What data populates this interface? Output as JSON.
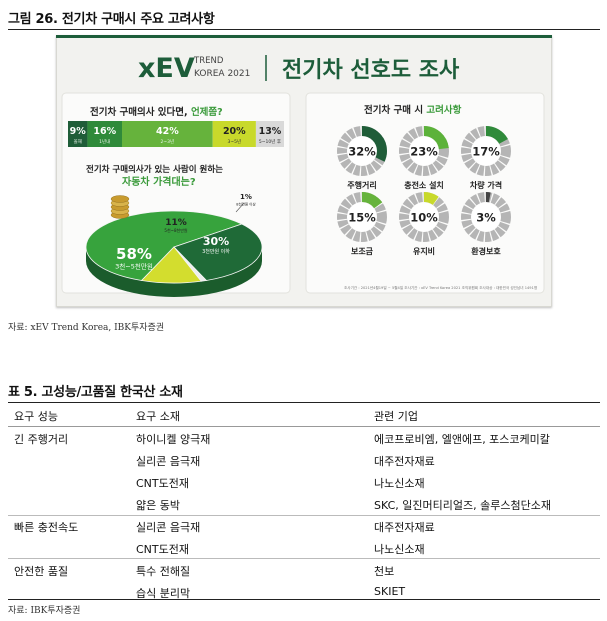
{
  "figure": {
    "title": "그림 26. 전기차 구매시 주요 고려사항",
    "source": "자료: xEV Trend Korea, IBK투자증권"
  },
  "poster": {
    "brand": "xEV",
    "brand_sub1": "TREND",
    "brand_sub2": "KOREA 2021",
    "headline": "전기차 선호도 조사",
    "bar_question_a": "전기차 구매의사 있다면, ",
    "bar_question_b": "언제쯤?",
    "bar_segments": [
      {
        "pct": "9%",
        "label": "올해",
        "share": 9,
        "color": "#1f5d38"
      },
      {
        "pct": "16%",
        "label": "1년내",
        "share": 16,
        "color": "#2f8a3a"
      },
      {
        "pct": "42%",
        "label": "2~3년",
        "share": 42,
        "color": "#66b33c"
      },
      {
        "pct": "20%",
        "label": "3~5년",
        "share": 20,
        "color": "#c8d92b"
      },
      {
        "pct": "13%",
        "label": "5~10년 후",
        "share": 13,
        "color": "#d9d9d9"
      }
    ],
    "pie_question_a": "전기차 구매의사가 있는 사람이 원하는",
    "pie_question_b": "자동차 가격대는?",
    "pie_slices": [
      {
        "pct": "58%",
        "label": "3천~5천만원",
        "value": 58,
        "color": "#37a33d"
      },
      {
        "pct": "30%",
        "label": "3천만원 이하",
        "value": 30,
        "color": "#1f6a37"
      },
      {
        "pct": "11%",
        "label": "5천~8천만원",
        "value": 11,
        "color": "#d3dd2e"
      },
      {
        "pct": "1%",
        "label": "8천만원 이상",
        "value": 1,
        "color": "#eeeeee"
      }
    ],
    "donut_title_a": "전기차 구매 시 ",
    "donut_title_b": "고려사항",
    "donuts": [
      {
        "pct": "32%",
        "label": "주행거리",
        "value": 32,
        "color": "#1f5d38"
      },
      {
        "pct": "23%",
        "label": "충전소 설치",
        "value": 23,
        "color": "#5cb23a"
      },
      {
        "pct": "17%",
        "label": "차량 가격",
        "value": 17,
        "color": "#2f8a3a"
      },
      {
        "pct": "15%",
        "label": "보조금",
        "value": 15,
        "color": "#66b33c"
      },
      {
        "pct": "10%",
        "label": "유지비",
        "value": 10,
        "color": "#c8d92b"
      },
      {
        "pct": "3%",
        "label": "환경보호",
        "value": 3,
        "color": "#444444"
      }
    ],
    "footnote": "조사기간 : 2021년4월19일 ~ 5월4일 조사기관 : xEV Trend Korea 2021 조직위원회 조사대상 : 대한민국 성인남녀 1491명"
  },
  "table": {
    "title": "표 5. 고성능/고품질 한국산 소재",
    "headers": [
      "요구 성능",
      "요구 소재",
      "관련 기업"
    ],
    "rows": [
      [
        "긴 주행거리",
        "하이니켈 양극재",
        "에코프로비엠, 엘앤에프, 포스코케미칼"
      ],
      [
        "",
        "실리콘 음극재",
        "대주전자재료"
      ],
      [
        "",
        "CNT도전재",
        "나노신소재"
      ],
      [
        "",
        "얇은 동박",
        "SKC, 일진머티리얼즈, 솔루스첨단소재"
      ],
      [
        "빠른 충전속도",
        "실리콘 음극재",
        "대주전자재료"
      ],
      [
        "",
        "CNT도전재",
        "나노신소재"
      ],
      [
        "안전한 품질",
        "특수 전해질",
        "천보"
      ],
      [
        "",
        "습식 분리막",
        "SKIET"
      ]
    ],
    "source": "자료: IBK투자증권"
  }
}
